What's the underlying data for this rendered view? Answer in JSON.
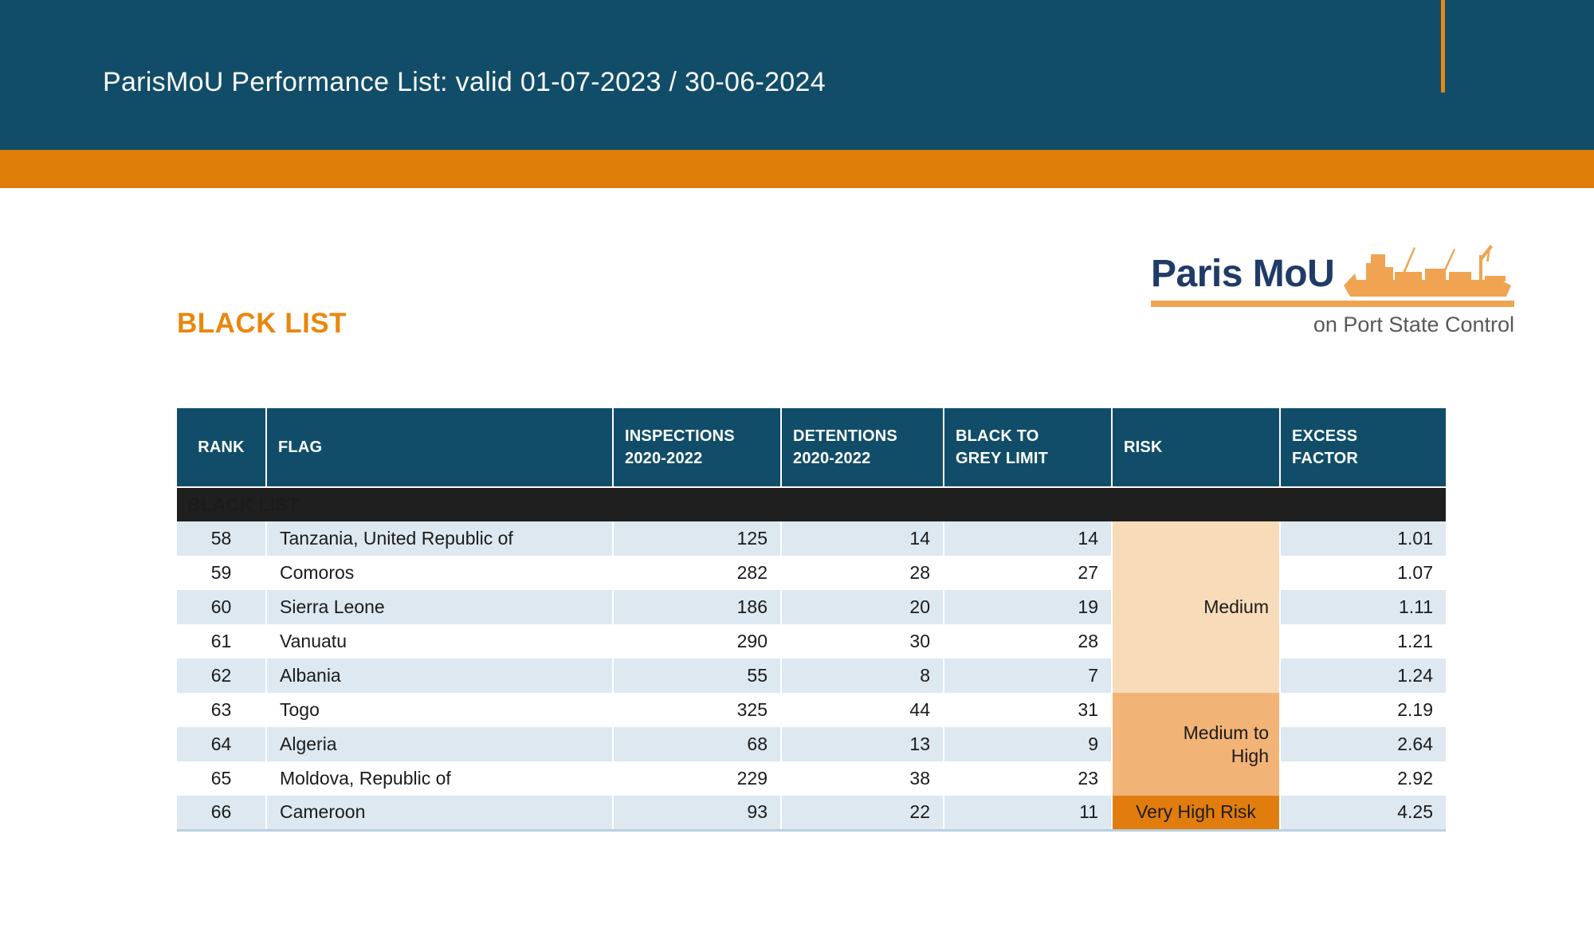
{
  "page": {
    "title": "ParisMoU Performance List: valid 01-07-2023 / 30-06-2024",
    "section_heading": "BLACK LIST"
  },
  "logo": {
    "name": "Paris MoU",
    "tagline": "on Port State Control"
  },
  "colors": {
    "header_blue": "#114d69",
    "band_orange": "#e07e0a",
    "accent_orange": "#e8870f",
    "logo_orange": "#f0a452",
    "logo_navy": "#1f3b66",
    "stripe_blue": "#dde8f1",
    "section_black": "#1f1f1f"
  },
  "table": {
    "section_label": "BLACK LIST",
    "columns": [
      {
        "id": "rank",
        "label": "RANK"
      },
      {
        "id": "flag",
        "label": "FLAG"
      },
      {
        "id": "inspections",
        "label": "INSPECTIONS\n2020-2022"
      },
      {
        "id": "detentions",
        "label": "DETENTIONS\n2020-2022"
      },
      {
        "id": "limit",
        "label": "BLACK TO\nGREY LIMIT"
      },
      {
        "id": "risk",
        "label": "RISK"
      },
      {
        "id": "excess",
        "label": "EXCESS\nFACTOR"
      }
    ],
    "rows": [
      {
        "rank": "58",
        "flag": "Tanzania, United Republic of",
        "inspections": "125",
        "detentions": "14",
        "limit": "14",
        "excess": "1.01"
      },
      {
        "rank": "59",
        "flag": "Comoros",
        "inspections": "282",
        "detentions": "28",
        "limit": "27",
        "excess": "1.07"
      },
      {
        "rank": "60",
        "flag": "Sierra Leone",
        "inspections": "186",
        "detentions": "20",
        "limit": "19",
        "excess": "1.11"
      },
      {
        "rank": "61",
        "flag": "Vanuatu",
        "inspections": "290",
        "detentions": "30",
        "limit": "28",
        "excess": "1.21"
      },
      {
        "rank": "62",
        "flag": "Albania",
        "inspections": "55",
        "detentions": "8",
        "limit": "7",
        "excess": "1.24"
      },
      {
        "rank": "63",
        "flag": "Togo",
        "inspections": "325",
        "detentions": "44",
        "limit": "31",
        "excess": "2.19"
      },
      {
        "rank": "64",
        "flag": "Algeria",
        "inspections": "68",
        "detentions": "13",
        "limit": "9",
        "excess": "2.64"
      },
      {
        "rank": "65",
        "flag": "Moldova, Republic of",
        "inspections": "229",
        "detentions": "38",
        "limit": "23",
        "excess": "2.92"
      },
      {
        "rank": "66",
        "flag": "Cameroon",
        "inspections": "93",
        "detentions": "22",
        "limit": "11",
        "excess": "4.25"
      }
    ],
    "risk_groups": [
      {
        "label": "Medium",
        "rows": 5,
        "color": "#f8dcba"
      },
      {
        "label": "Medium to High",
        "rows": 3,
        "color": "#f2b377"
      },
      {
        "label": "Very High Risk",
        "rows": 1,
        "color": "#e17d0e"
      }
    ]
  }
}
